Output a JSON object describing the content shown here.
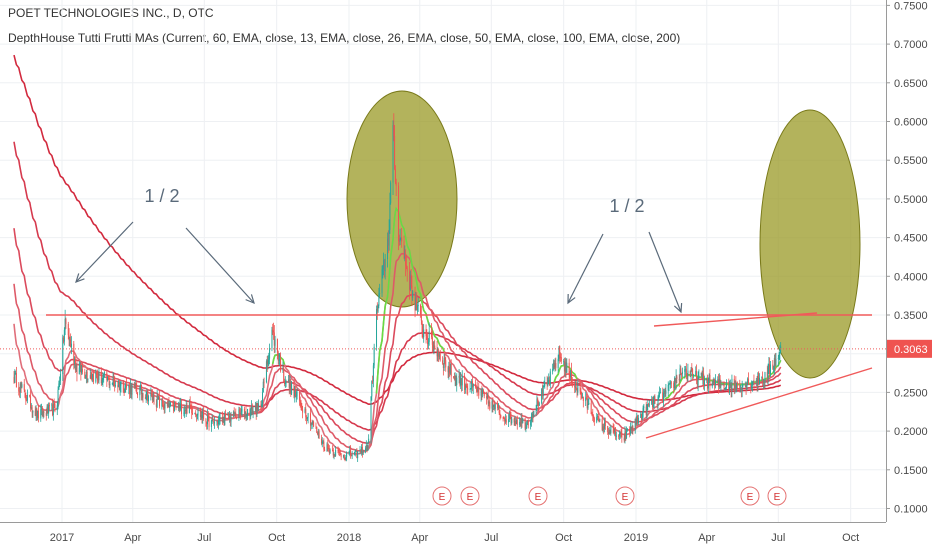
{
  "header": {
    "title": "POET TECHNOLOGIES INC., D, OTC",
    "indicator": "DepthHouse Tutti Frutti MAs (Current, 60, EMA, close, 13, EMA, close, 26, EMA, close, 50, EMA, close, 100, EMA, close, 200)"
  },
  "chart_data": {
    "type": "candlestick",
    "x_ticks": [
      "2017",
      "Apr",
      "Jul",
      "Oct",
      "2018",
      "Apr",
      "Jul",
      "Oct",
      "2019",
      "Apr",
      "Jul",
      "Oct"
    ],
    "y_ticks": [
      "0.1000",
      "0.1500",
      "0.2000",
      "0.2500",
      "0.3000",
      "0.3500",
      "0.4000",
      "0.4500",
      "0.5000",
      "0.5500",
      "0.6000",
      "0.6500",
      "0.7000",
      "0.7500"
    ],
    "ylim": [
      0.1,
      0.75
    ],
    "current_price": "0.3063",
    "resistance_level": 0.35,
    "annotations": [
      {
        "text": "1 / 2",
        "x": "2017-05",
        "y": 0.495
      },
      {
        "text": "1 / 2",
        "x": "2018-11",
        "y": 0.495
      }
    ],
    "earnings_markers": [
      "E",
      "E",
      "E",
      "E",
      "E",
      "E"
    ],
    "price_path": [
      [
        "2016-11-01",
        0.27
      ],
      [
        "2016-12-01",
        0.22
      ],
      [
        "2016-12-25",
        0.23
      ],
      [
        "2017-01-05",
        0.34
      ],
      [
        "2017-01-20",
        0.28
      ],
      [
        "2017-02-15",
        0.27
      ],
      [
        "2017-03-15",
        0.26
      ],
      [
        "2017-04-15",
        0.25
      ],
      [
        "2017-05-15",
        0.23
      ],
      [
        "2017-06-15",
        0.23
      ],
      [
        "2017-07-10",
        0.21
      ],
      [
        "2017-08-10",
        0.22
      ],
      [
        "2017-09-10",
        0.23
      ],
      [
        "2017-09-25",
        0.33
      ],
      [
        "2017-10-10",
        0.27
      ],
      [
        "2017-11-10",
        0.22
      ],
      [
        "2017-12-01",
        0.18
      ],
      [
        "2017-12-20",
        0.17
      ],
      [
        "2018-01-10",
        0.17
      ],
      [
        "2018-01-25",
        0.18
      ],
      [
        "2018-02-05",
        0.35
      ],
      [
        "2018-02-20",
        0.45
      ],
      [
        "2018-02-26",
        0.58
      ],
      [
        "2018-03-05",
        0.46
      ],
      [
        "2018-03-20",
        0.39
      ],
      [
        "2018-04-05",
        0.33
      ],
      [
        "2018-04-25",
        0.3
      ],
      [
        "2018-05-15",
        0.27
      ],
      [
        "2018-06-15",
        0.25
      ],
      [
        "2018-07-15",
        0.22
      ],
      [
        "2018-08-15",
        0.21
      ],
      [
        "2018-09-15",
        0.27
      ],
      [
        "2018-09-25",
        0.3
      ],
      [
        "2018-10-15",
        0.26
      ],
      [
        "2018-11-15",
        0.21
      ],
      [
        "2018-12-15",
        0.19
      ],
      [
        "2019-01-15",
        0.23
      ],
      [
        "2019-02-10",
        0.25
      ],
      [
        "2019-03-01",
        0.28
      ],
      [
        "2019-03-15",
        0.27
      ],
      [
        "2019-04-15",
        0.26
      ],
      [
        "2019-05-15",
        0.26
      ],
      [
        "2019-06-15",
        0.27
      ],
      [
        "2019-07-05",
        0.3063
      ]
    ],
    "moving_averages": [
      {
        "name": "EMA 200",
        "color": "#d22a3e",
        "start": 0.69,
        "lag": 200
      },
      {
        "name": "EMA 100",
        "color": "#d63a4e",
        "start": 0.58,
        "lag": 100
      },
      {
        "name": "EMA 50",
        "color": "#db4a5c",
        "start": 0.47,
        "lag": 50
      },
      {
        "name": "EMA 26",
        "color": "#de5a68",
        "start": 0.4,
        "lag": 26
      },
      {
        "name": "EMA 13",
        "color": "#e06e7a",
        "start": 0.35,
        "lag": 13
      }
    ],
    "colors": {
      "up": "#26a69a",
      "down": "#ef5350",
      "ellipse_fill": "#9a9a26",
      "ellipse_stroke": "#7a7a1a",
      "trendline": "#f05a5a",
      "arrow": "#5a6a7a",
      "price_label_bg": "#ef5350",
      "ema_bull": "#66dd44",
      "ema_neutral": "#bbbbbb"
    }
  }
}
